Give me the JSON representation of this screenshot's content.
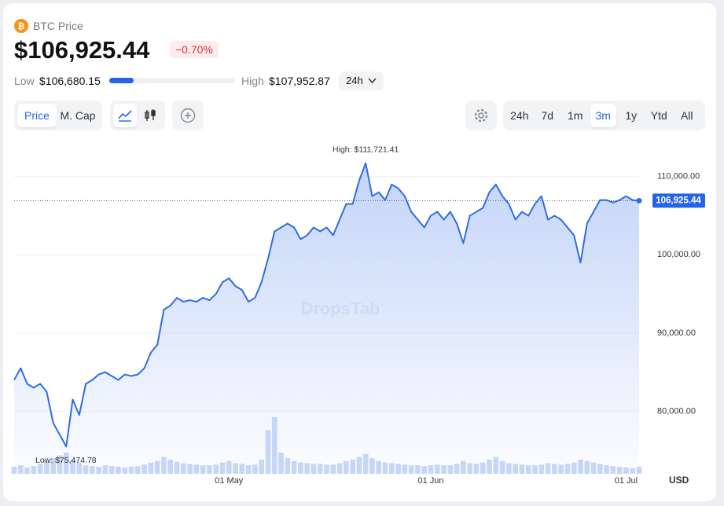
{
  "header": {
    "title": "BTC Price",
    "price": {
      "value": 106925.44,
      "label": "$106,925.44"
    },
    "change": {
      "value": -0.7,
      "label": "−0.70%"
    },
    "low_text": "Low",
    "low": {
      "value": 106680.15,
      "label": "$106,680.15"
    },
    "high_text": "High",
    "high": {
      "value": 107952.87,
      "label": "$107,952.87"
    },
    "period": "24h"
  },
  "toolbar": {
    "tabs": [
      "Price",
      "M. Cap"
    ],
    "active_tab": 0,
    "ranges": [
      "24h",
      "7d",
      "1m",
      "3m",
      "1y",
      "Ytd",
      "All"
    ],
    "active_range": 3
  },
  "chart_data": {
    "type": "line",
    "watermark": "DropsTab",
    "color": "#2f6de1",
    "volume_color": "#c6d6f7",
    "categories": [
      null,
      null,
      null,
      null,
      null,
      null,
      null,
      null,
      null,
      null,
      null,
      null,
      null,
      null,
      null,
      null,
      null,
      null,
      null,
      null,
      null,
      null,
      null,
      null,
      null,
      null,
      null,
      null,
      null,
      null,
      null,
      null,
      null,
      "01 May",
      null,
      null,
      null,
      null,
      null,
      null,
      null,
      null,
      null,
      null,
      null,
      null,
      null,
      null,
      null,
      null,
      null,
      null,
      null,
      null,
      null,
      null,
      null,
      null,
      null,
      null,
      null,
      null,
      null,
      null,
      "01 Jun",
      null,
      null,
      null,
      null,
      null,
      null,
      null,
      null,
      null,
      null,
      null,
      null,
      null,
      null,
      null,
      null,
      null,
      null,
      null,
      null,
      null,
      null,
      null,
      null,
      null,
      null,
      null,
      null,
      null,
      "01 Jul",
      null,
      null
    ],
    "values": [
      84000,
      85500,
      83500,
      83000,
      83500,
      82500,
      78500,
      77000,
      75474.78,
      81500,
      79500,
      83500,
      84000,
      84700,
      85000,
      84500,
      84000,
      84700,
      84500,
      84700,
      85500,
      87500,
      88500,
      93000,
      93500,
      94500,
      94000,
      94200,
      94000,
      94500,
      94200,
      95000,
      96500,
      97000,
      96000,
      95500,
      94000,
      94500,
      96500,
      99500,
      103000,
      103500,
      104000,
      103500,
      102000,
      102500,
      103500,
      103000,
      103500,
      102500,
      104500,
      106500,
      106500,
      109500,
      111721.41,
      107500,
      108000,
      107000,
      109000,
      108500,
      107500,
      105500,
      104500,
      103500,
      105000,
      105500,
      104500,
      105500,
      104000,
      101500,
      105000,
      105500,
      106000,
      108000,
      109000,
      107500,
      106500,
      104500,
      105500,
      105000,
      106500,
      107500,
      104500,
      105000,
      104500,
      103500,
      102500,
      99000,
      104000,
      105500,
      107000,
      107000,
      106700,
      107000,
      107500,
      107000,
      106925.44
    ],
    "volume": [
      10,
      12,
      9,
      11,
      14,
      18,
      22,
      26,
      30,
      20,
      16,
      12,
      11,
      10,
      12,
      11,
      10,
      9,
      10,
      11,
      13,
      16,
      18,
      24,
      20,
      17,
      15,
      14,
      13,
      12,
      12,
      13,
      16,
      18,
      15,
      14,
      12,
      13,
      20,
      62,
      80,
      30,
      22,
      18,
      16,
      15,
      14,
      14,
      13,
      13,
      15,
      18,
      20,
      24,
      28,
      22,
      18,
      16,
      15,
      14,
      13,
      12,
      12,
      11,
      12,
      13,
      12,
      12,
      14,
      18,
      15,
      14,
      16,
      20,
      24,
      18,
      15,
      14,
      13,
      12,
      12,
      13,
      15,
      14,
      13,
      14,
      16,
      20,
      18,
      16,
      14,
      12,
      11,
      10,
      9,
      8,
      10
    ],
    "ylim": [
      72000,
      114500
    ],
    "yticks": [
      {
        "value": 80000,
        "label": "80,000.00"
      },
      {
        "value": 90000,
        "label": "90,000.00"
      },
      {
        "value": 100000,
        "label": "100,000.00"
      },
      {
        "value": 110000,
        "label": "110,000.00"
      }
    ],
    "grid": true,
    "current_label": "106,925.44",
    "currency": "USD",
    "annotations": [
      {
        "text": "High: $111,721.41",
        "index": 54
      },
      {
        "text": "Low: $75,474.78",
        "index": 8
      }
    ]
  }
}
